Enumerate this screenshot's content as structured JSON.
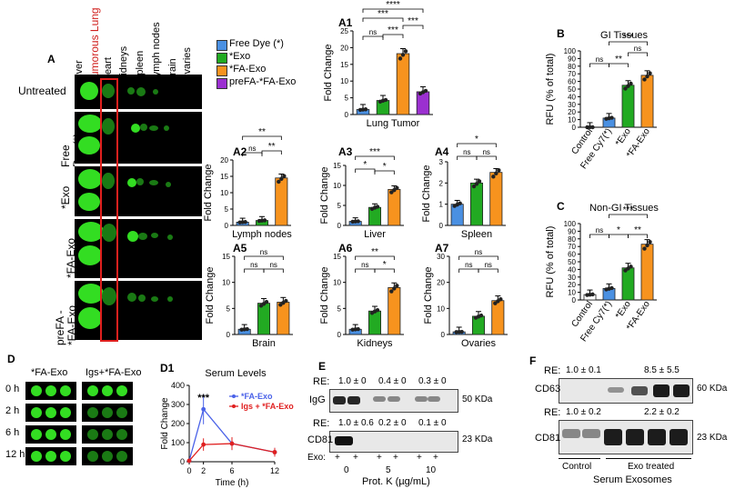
{
  "panel_labels": {
    "A": "A",
    "A1": "A1",
    "A2": "A2",
    "A3": "A3",
    "A4": "A4",
    "A5": "A5",
    "A6": "A6",
    "A7": "A7",
    "B": "B",
    "C": "C",
    "D": "D",
    "D1": "D1",
    "E": "E",
    "F": "F"
  },
  "organs": [
    "Liver",
    "Tumorous Lung",
    "Heart",
    "Kidneys",
    "Spleen",
    "Lymph nodes",
    "Brain",
    "Ovaries"
  ],
  "rows": [
    "Untreated",
    "Free Dye (*)",
    "*Exo",
    "*FA-Exo",
    "preFA - *FA-Exo"
  ],
  "legend": [
    {
      "label": "Free Dye (*)",
      "color": "#4a90e2"
    },
    {
      "label": "*Exo",
      "color": "#22aa22"
    },
    {
      "label": "*FA-Exo",
      "color": "#f7931e"
    },
    {
      "label": "preFA-*FA-Exo",
      "color": "#9b30d0"
    }
  ],
  "colors": {
    "red_box": "#e0201e",
    "tumor_label": "#d0201e"
  },
  "ylabel_fold": "Fold Change",
  "sig": {
    "ns": "ns",
    "s1": "*",
    "s2": "**",
    "s3": "***",
    "s4": "****"
  },
  "chart_data": [
    {
      "id": "A1",
      "type": "bar",
      "xlabel": "Lung Tumor",
      "ylabel": "Fold Change",
      "ylim": [
        0,
        25
      ],
      "yticks": [
        0,
        5,
        10,
        15,
        20,
        25
      ],
      "values": [
        1.5,
        4.2,
        18.2,
        6.8
      ],
      "colors": [
        "#4a90e2",
        "#22aa22",
        "#f7931e",
        "#9b30d0"
      ]
    },
    {
      "id": "A2",
      "type": "bar",
      "xlabel": "Lymph nodes",
      "ylabel": "Fold Change",
      "ylim": [
        0,
        20
      ],
      "yticks": [
        0,
        5,
        10,
        15,
        20
      ],
      "values": [
        1.0,
        1.5,
        14.5
      ],
      "colors": [
        "#4a90e2",
        "#22aa22",
        "#f7931e"
      ]
    },
    {
      "id": "A3",
      "type": "bar",
      "xlabel": "Liver",
      "ylabel": "Fold Change",
      "ylim": [
        0,
        15
      ],
      "yticks": [
        0,
        5,
        10,
        15
      ],
      "values": [
        1.0,
        4.5,
        9.0
      ],
      "colors": [
        "#4a90e2",
        "#22aa22",
        "#f7931e"
      ]
    },
    {
      "id": "A4",
      "type": "bar",
      "xlabel": "Spleen",
      "ylabel": "Fold Change",
      "ylim": [
        0,
        3
      ],
      "yticks": [
        0,
        1,
        2,
        3
      ],
      "values": [
        1.0,
        2.0,
        2.5
      ],
      "colors": [
        "#4a90e2",
        "#22aa22",
        "#f7931e"
      ]
    },
    {
      "id": "A5",
      "type": "bar",
      "xlabel": "Brain",
      "ylabel": "Fold Change",
      "ylim": [
        0,
        15
      ],
      "yticks": [
        0,
        5,
        10,
        15
      ],
      "values": [
        1.0,
        6.0,
        6.2
      ],
      "colors": [
        "#4a90e2",
        "#22aa22",
        "#f7931e"
      ]
    },
    {
      "id": "A6",
      "type": "bar",
      "xlabel": "Kidneys",
      "ylabel": "Fold Change",
      "ylim": [
        0,
        15
      ],
      "yticks": [
        0,
        5,
        10,
        15
      ],
      "values": [
        1.0,
        4.5,
        9.0
      ],
      "colors": [
        "#4a90e2",
        "#22aa22",
        "#f7931e"
      ]
    },
    {
      "id": "A7",
      "type": "bar",
      "xlabel": "Ovaries",
      "ylabel": "Fold Change",
      "ylim": [
        0,
        30
      ],
      "yticks": [
        0,
        10,
        20,
        30
      ],
      "values": [
        1.0,
        7.0,
        13.0
      ],
      "colors": [
        "#4a90e2",
        "#22aa22",
        "#f7931e"
      ]
    },
    {
      "id": "B",
      "type": "bar",
      "title": "GI Tissues",
      "ylabel": "RFU (% of total)",
      "ylim": [
        0,
        100
      ],
      "yticks": [
        0,
        10,
        20,
        30,
        40,
        50,
        60,
        70,
        80,
        90,
        100
      ],
      "categories": [
        "Control",
        "Free Cy7(*)",
        "*Exo",
        "*FA-Exo"
      ],
      "values": [
        0,
        12,
        55,
        68
      ],
      "colors": [
        "#ffffff",
        "#4a90e2",
        "#22aa22",
        "#f7931e"
      ]
    },
    {
      "id": "C",
      "type": "bar",
      "title": "Non-GI Tissues",
      "ylabel": "RFU (% of total)",
      "ylim": [
        0,
        100
      ],
      "yticks": [
        0,
        10,
        20,
        30,
        40,
        50,
        60,
        70,
        80,
        90,
        100
      ],
      "categories": [
        "Control",
        "Free Cy7(*)",
        "*Exo",
        "*FA-Exo"
      ],
      "values": [
        7,
        15,
        42,
        73
      ],
      "colors": [
        "#ffffff",
        "#4a90e2",
        "#22aa22",
        "#f7931e"
      ]
    },
    {
      "id": "D1",
      "type": "line",
      "title": "Serum Levels",
      "xlabel": "Time (h)",
      "ylabel": "Fold Change",
      "xlim": [
        0,
        12
      ],
      "ylim": [
        0,
        400
      ],
      "xticks": [
        0,
        2,
        6,
        12
      ],
      "yticks": [
        0,
        100,
        200,
        300,
        400
      ],
      "series": [
        {
          "name": "*FA-Exo",
          "color": "#4a62e8",
          "x": [
            0,
            2,
            6,
            12
          ],
          "y": [
            5,
            275,
            95,
            50
          ]
        },
        {
          "name": "Igs + *FA-Exo",
          "color": "#e02020",
          "x": [
            0,
            2,
            6,
            12
          ],
          "y": [
            5,
            90,
            95,
            50
          ]
        }
      ],
      "annotation": "***"
    }
  ],
  "panel_D": {
    "cols": [
      "*FA-Exo",
      "Igs+*FA-Exo"
    ],
    "times": [
      "0 h",
      "2 h",
      "6 h",
      "12 h"
    ]
  },
  "panel_E": {
    "re_label": "RE:",
    "igg_re": [
      "1.0 ± 0",
      "0.4 ± 0",
      "0.3 ± 0"
    ],
    "cd81_re": [
      "1.0 ± 0.6",
      "0.2 ± 0",
      "0.1 ± 0"
    ],
    "igg": "IgG",
    "cd81": "CD81",
    "igg_kda": "50 KDa",
    "cd81_kda": "23 KDa",
    "exo_label": "Exo:",
    "plus": "+",
    "doses": [
      "0",
      "5",
      "10"
    ],
    "xlabel": "Prot. K (µg/mL)"
  },
  "panel_F": {
    "re_label": "RE:",
    "cd63_re": [
      "1.0 ± 0.1",
      "8.5 ± 5.5"
    ],
    "cd81_re": [
      "1.0 ± 0.2",
      "2.2 ± 0.2"
    ],
    "cd63": "CD63",
    "cd81": "CD81",
    "cd63_kda": "60 KDa",
    "cd81_kda": "23 KDa",
    "groups": [
      "Control",
      "Exo treated"
    ],
    "xlabel": "Serum Exosomes"
  }
}
